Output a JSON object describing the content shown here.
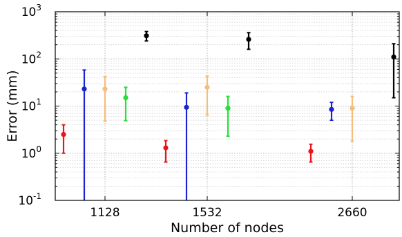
{
  "chart_data": {
    "type": "scatter",
    "title": "",
    "xlabel": "Number of nodes",
    "ylabel": "Error (mm)",
    "categories": [
      "1128",
      "1532",
      "2660"
    ],
    "y_scale": "log",
    "ylim": [
      0.1,
      1000
    ],
    "y_ticks": [
      {
        "value": 0.1,
        "base": "10",
        "exp": "-1"
      },
      {
        "value": 1,
        "base": "10",
        "exp": "0"
      },
      {
        "value": 10,
        "base": "10",
        "exp": "1"
      },
      {
        "value": 100,
        "base": "10",
        "exp": "2"
      },
      {
        "value": 1000,
        "base": "10",
        "exp": "3"
      }
    ],
    "grid": true,
    "legend": "none",
    "series": [
      {
        "color": "#e8141a",
        "values": [
          {
            "category": "1128",
            "y": 2.5,
            "low": 1.0,
            "high": 4.0
          },
          {
            "category": "1532",
            "y": 1.3,
            "low": 0.65,
            "high": 1.85
          },
          {
            "category": "2660",
            "y": 1.1,
            "low": 0.65,
            "high": 1.55
          }
        ]
      },
      {
        "color": "#1b22d0",
        "values": [
          {
            "category": "1128",
            "y": 23,
            "low": 0.1,
            "high": 58
          },
          {
            "category": "1532",
            "y": 9.4,
            "low": 0.1,
            "high": 19
          },
          {
            "category": "2660",
            "y": 8.5,
            "low": 5.0,
            "high": 12
          }
        ]
      },
      {
        "color": "#f6be7a",
        "values": [
          {
            "category": "1128",
            "y": 23,
            "low": 4.8,
            "high": 42
          },
          {
            "category": "1532",
            "y": 25,
            "low": 6.5,
            "high": 43
          },
          {
            "category": "2660",
            "y": 9.0,
            "low": 1.8,
            "high": 16
          }
        ]
      },
      {
        "color": "#22e036",
        "values": [
          {
            "category": "1128",
            "y": 15,
            "low": 4.9,
            "high": 25
          },
          {
            "category": "1532",
            "y": 9.0,
            "low": 2.3,
            "high": 16
          },
          {
            "category": "2660",
            "y": null,
            "low": null,
            "high": null
          }
        ]
      },
      {
        "color": "#000000",
        "values": [
          {
            "category": "1128",
            "y": 310,
            "low": 240,
            "high": 380
          },
          {
            "category": "1532",
            "y": 260,
            "low": 160,
            "high": 360
          },
          {
            "category": "2660",
            "y": 110,
            "low": 15,
            "high": 210
          }
        ]
      }
    ]
  }
}
